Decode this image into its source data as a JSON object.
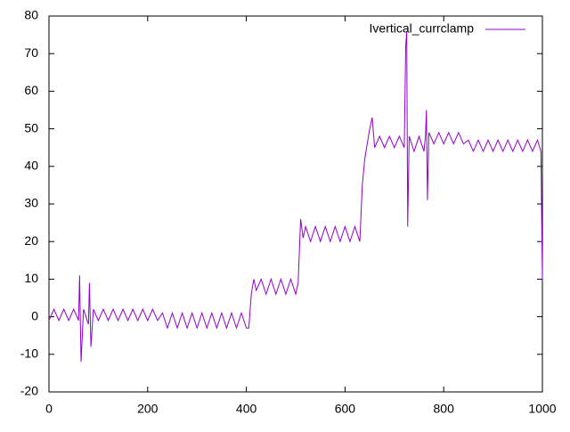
{
  "chart_data": {
    "type": "line",
    "x": [
      0,
      10,
      20,
      30,
      40,
      50,
      60,
      62,
      65,
      70,
      80,
      82,
      85,
      90,
      100,
      110,
      120,
      130,
      140,
      150,
      160,
      170,
      180,
      190,
      200,
      210,
      220,
      230,
      240,
      250,
      260,
      270,
      280,
      290,
      300,
      310,
      320,
      330,
      340,
      350,
      360,
      370,
      380,
      390,
      400,
      405,
      410,
      415,
      420,
      430,
      440,
      450,
      460,
      470,
      480,
      490,
      500,
      505,
      510,
      515,
      520,
      530,
      540,
      550,
      560,
      570,
      580,
      590,
      600,
      610,
      620,
      630,
      635,
      640,
      645,
      650,
      655,
      660,
      670,
      680,
      690,
      700,
      710,
      720,
      723,
      725,
      727,
      730,
      740,
      750,
      760,
      763,
      765,
      767,
      770,
      780,
      790,
      800,
      810,
      820,
      830,
      840,
      850,
      860,
      870,
      880,
      890,
      900,
      910,
      920,
      930,
      940,
      950,
      960,
      970,
      980,
      990,
      997,
      1000
    ],
    "series": [
      {
        "name": "Ivertical_currclamp",
        "color": "#9400d3",
        "values": [
          -1,
          2,
          -1,
          2,
          -1,
          2,
          -1,
          11,
          -12,
          2,
          -2,
          9,
          -8,
          2,
          -1,
          2,
          -1,
          2,
          -1,
          2,
          -1,
          2,
          -1,
          2,
          -1,
          2,
          -1,
          1,
          -3,
          1,
          -3,
          1,
          -3,
          1,
          -3,
          1,
          -3,
          1,
          -3,
          1,
          -3,
          1,
          -3,
          1,
          -3,
          -3,
          6,
          10,
          7,
          10,
          6,
          10,
          6,
          10,
          6,
          10,
          6,
          9,
          26,
          21,
          24,
          20,
          24,
          20,
          24,
          20,
          24,
          20,
          24,
          20,
          24,
          20,
          35,
          42,
          46,
          50,
          53,
          45,
          48,
          45,
          48,
          45,
          48,
          45,
          72,
          76,
          24,
          48,
          44,
          48,
          44,
          48,
          55,
          31,
          49,
          46,
          49,
          46,
          49,
          46,
          49,
          46,
          47,
          44,
          47,
          44,
          47,
          44,
          47,
          44,
          47,
          44,
          47,
          44,
          47,
          44,
          47,
          44,
          10
        ]
      }
    ],
    "xlim": [
      0,
      1000
    ],
    "xticks": [
      0,
      200,
      400,
      600,
      800,
      1000
    ],
    "ylim": [
      -20,
      80
    ],
    "yticks": [
      -20,
      -10,
      0,
      10,
      20,
      30,
      40,
      50,
      60,
      70,
      80
    ],
    "grid": false,
    "legend": "top-right"
  }
}
